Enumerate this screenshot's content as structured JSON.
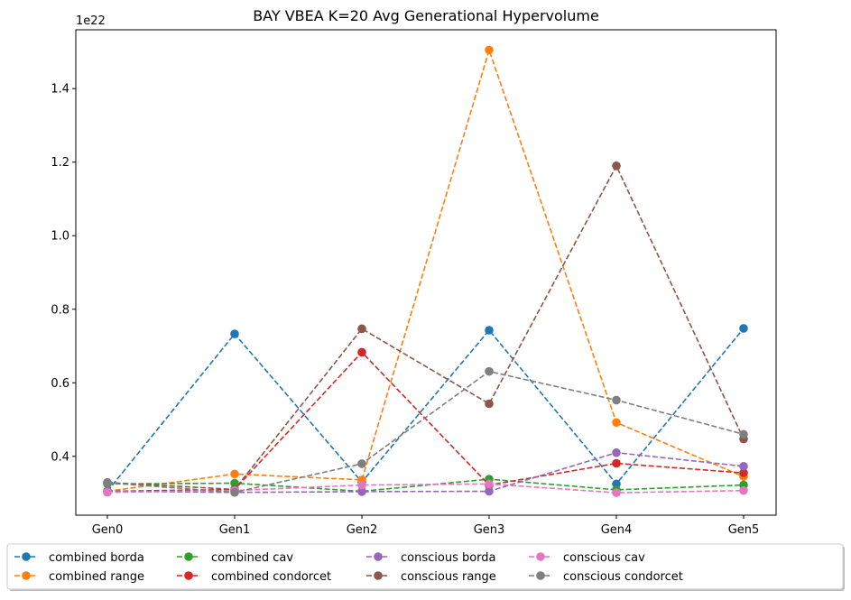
{
  "chart_data": {
    "type": "line",
    "title": "BAY VBEA K=20 Avg Generational Hypervolume",
    "xlabel": "",
    "ylabel": "",
    "y_offset_label": "1e22",
    "y_scale_exponent": 22,
    "categories": [
      "Gen0",
      "Gen1",
      "Gen2",
      "Gen3",
      "Gen4",
      "Gen5"
    ],
    "ylim": [
      0.24,
      1.56
    ],
    "yticks": [
      0.4,
      0.6,
      0.8,
      1.0,
      1.2,
      1.4
    ],
    "ytick_labels": [
      "0.4",
      "0.6",
      "0.8",
      "1.0",
      "1.2",
      "1.4"
    ],
    "grid": false,
    "legend_position": "bottom",
    "series": [
      {
        "name": "combined borda",
        "color": "#1f77b4",
        "values": [
          0.305,
          0.733,
          0.33,
          0.743,
          0.325,
          0.748
        ]
      },
      {
        "name": "combined range",
        "color": "#ff7f0e",
        "values": [
          0.305,
          0.352,
          0.336,
          1.505,
          0.492,
          0.345
        ]
      },
      {
        "name": "combined cav",
        "color": "#2ca02c",
        "values": [
          0.325,
          0.327,
          0.305,
          0.338,
          0.309,
          0.322
        ]
      },
      {
        "name": "combined condorcet",
        "color": "#d62728",
        "values": [
          0.305,
          0.31,
          0.683,
          0.322,
          0.381,
          0.355
        ]
      },
      {
        "name": "conscious borda",
        "color": "#9467bd",
        "values": [
          0.305,
          0.302,
          0.304,
          0.305,
          0.41,
          0.373
        ]
      },
      {
        "name": "conscious range",
        "color": "#8c564b",
        "values": [
          0.329,
          0.31,
          0.747,
          0.543,
          1.19,
          0.447
        ]
      },
      {
        "name": "conscious cav",
        "color": "#e377c2",
        "values": [
          0.302,
          0.307,
          0.322,
          0.325,
          0.301,
          0.307
        ]
      },
      {
        "name": "conscious condorcet",
        "color": "#7f7f7f",
        "values": [
          0.328,
          0.302,
          0.38,
          0.631,
          0.553,
          0.46
        ]
      }
    ]
  }
}
